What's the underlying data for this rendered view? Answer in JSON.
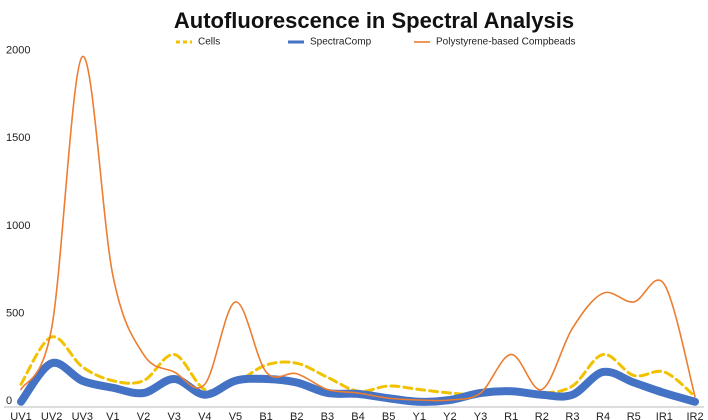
{
  "chart_data": {
    "type": "line",
    "title": "Autofluorescence in Spectral Analysis",
    "categories": [
      "UV1",
      "UV2",
      "UV3",
      "V1",
      "V2",
      "V3",
      "V4",
      "V5",
      "B1",
      "B2",
      "B3",
      "B4",
      "B5",
      "Y1",
      "Y2",
      "Y3",
      "R1",
      "R2",
      "R3",
      "R4",
      "R5",
      "IR1",
      "IR2"
    ],
    "series": [
      {
        "name": "Cells",
        "color": "#f2c200",
        "dash": true,
        "width": 3,
        "values": [
          130,
          400,
          230,
          150,
          150,
          300,
          100,
          140,
          240,
          250,
          170,
          90,
          120,
          100,
          80,
          70,
          100,
          80,
          120,
          300,
          180,
          200,
          60
        ]
      },
      {
        "name": "SpectraComp",
        "color": "#4472c4",
        "dash": false,
        "width": 8,
        "values": [
          30,
          250,
          150,
          110,
          80,
          160,
          70,
          150,
          160,
          140,
          80,
          75,
          50,
          30,
          40,
          80,
          90,
          70,
          70,
          200,
          140,
          80,
          30
        ]
      },
      {
        "name": "Polystyrene-based Compbeads",
        "color": "#ed7d31",
        "dash": false,
        "width": 1.6,
        "values": [
          100,
          450,
          2000,
          750,
          300,
          200,
          130,
          600,
          200,
          190,
          100,
          80,
          50,
          40,
          40,
          80,
          300,
          100,
          450,
          650,
          600,
          700,
          60
        ]
      }
    ],
    "ylim": [
      0,
      2250
    ],
    "yticks": [
      0,
      500,
      1000,
      1500,
      2000
    ],
    "grid": false,
    "legend": "top"
  }
}
